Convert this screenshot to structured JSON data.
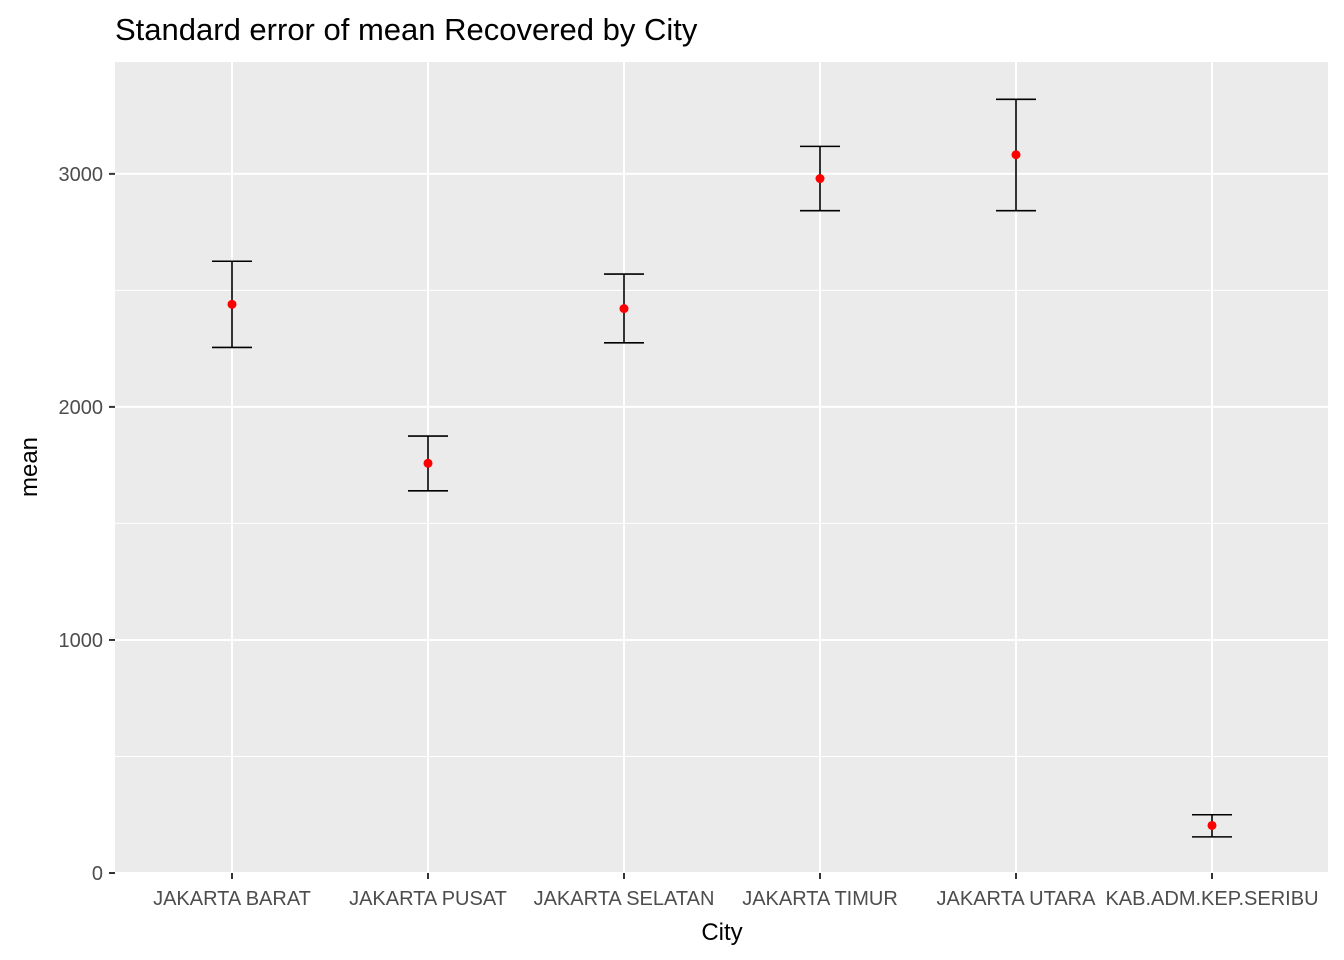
{
  "chart_data": {
    "type": "errorbar",
    "title": "Standard error of mean Recovered by City",
    "xlabel": "City",
    "ylabel": "mean",
    "categories": [
      "JAKARTA BARAT",
      "JAKARTA PUSAT",
      "JAKARTA SELATAN",
      "JAKARTA TIMUR",
      "JAKARTA UTARA",
      "KAB.ADM.KEP.SERIBU"
    ],
    "series": [
      {
        "mean": [
          2440,
          1758,
          2422,
          2980,
          3082,
          204
        ],
        "lower": [
          2255,
          1640,
          2275,
          2842,
          2842,
          155
        ],
        "upper": [
          2625,
          1875,
          2570,
          3118,
          3320,
          250
        ]
      }
    ],
    "ylim": [
      0,
      3480
    ],
    "y_ticks": [
      0,
      1000,
      2000,
      3000
    ],
    "y_minor_ticks": [
      500,
      1500,
      2500
    ],
    "grid": true,
    "colors": {
      "panel_background": "#ebebeb",
      "grid": "#ffffff",
      "point": "#ff0000",
      "errorbar": "#000000",
      "tick_label": "#4d4d4d"
    }
  }
}
